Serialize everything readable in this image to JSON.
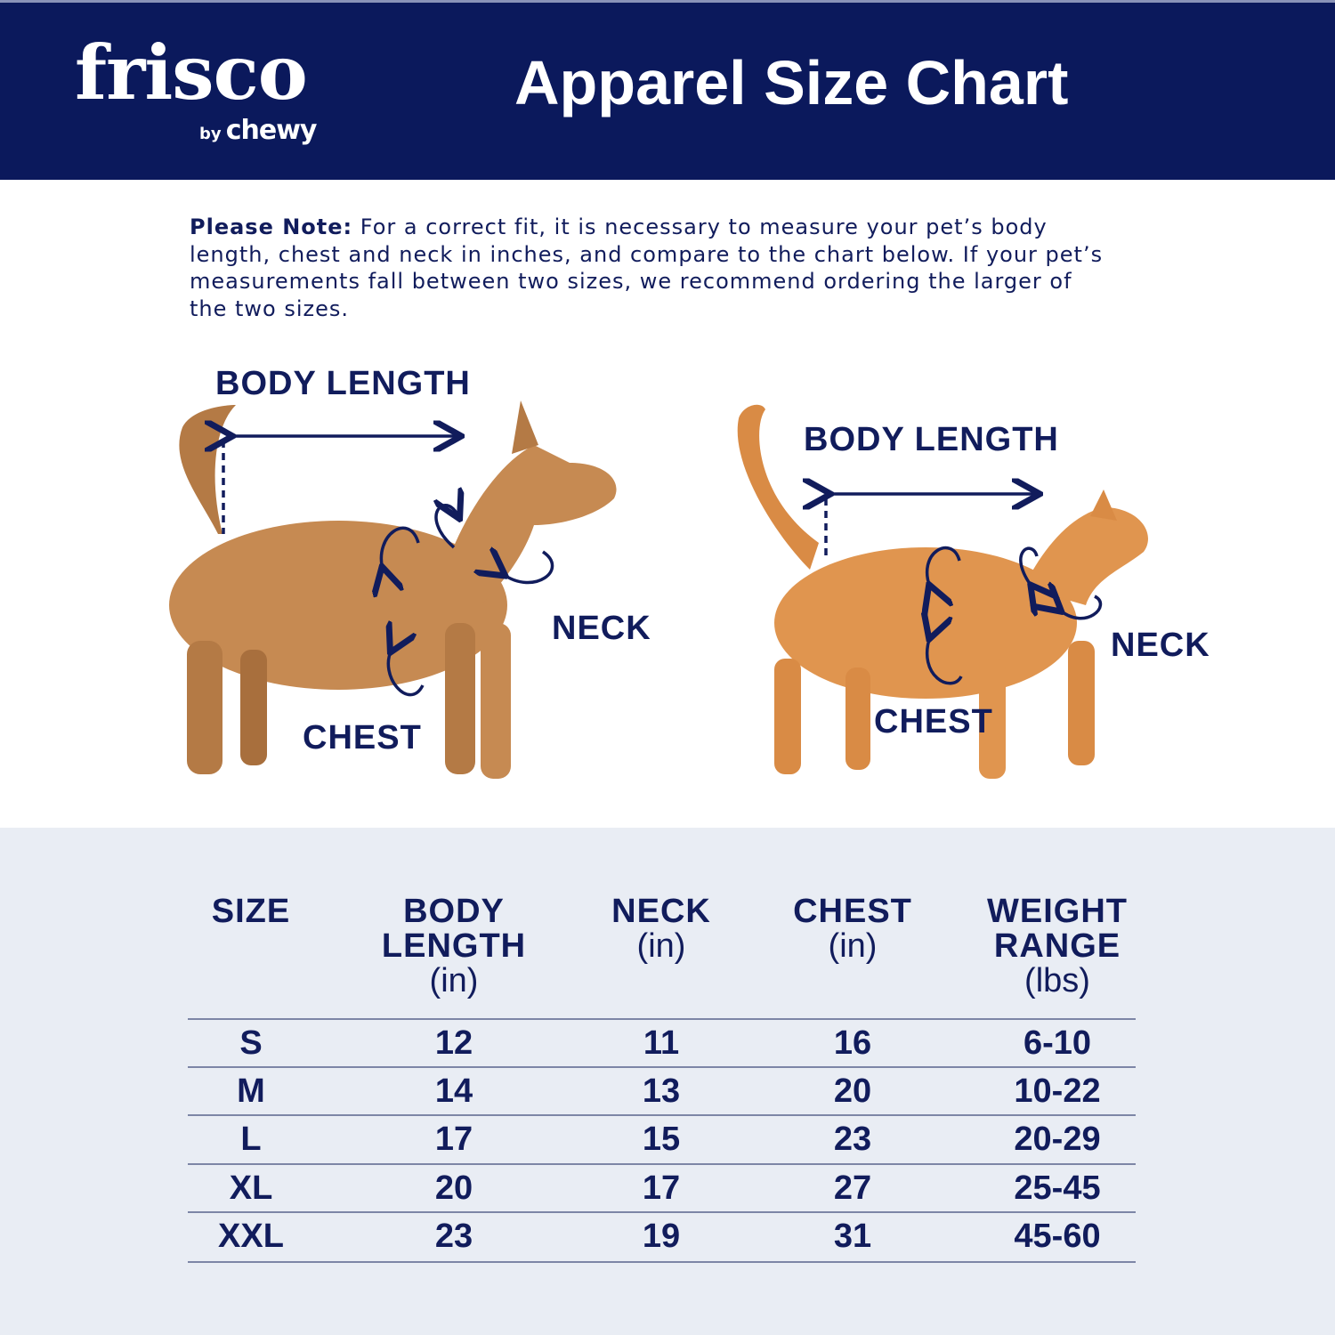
{
  "header": {
    "logo": {
      "brand": "frisco",
      "by": "by",
      "parent": "chewy"
    },
    "title": "Apparel Size Chart"
  },
  "note": {
    "label": "Please Note:",
    "text": " For a correct fit, it is necessary to measure your pet’s body length, chest and neck in inches, and compare to the chart below. If your pet’s measurements fall between two sizes, we recommend ordering the larger of the two sizes."
  },
  "diagram": {
    "dog": {
      "body_length": "BODY LENGTH",
      "neck": "NECK",
      "chest": "CHEST"
    },
    "cat": {
      "body_length": "BODY LENGTH",
      "neck": "NECK",
      "chest": "CHEST"
    }
  },
  "colors": {
    "navy": "#0b195c",
    "table_bg": "#e9edf4",
    "dog": "#c68a52",
    "cat": "#e0954f"
  },
  "table": {
    "headers": [
      {
        "title": "SIZE",
        "unit": ""
      },
      {
        "title": "BODY LENGTH",
        "title_lines": [
          "BODY",
          "LENGTH"
        ],
        "unit": "(in)"
      },
      {
        "title": "NECK",
        "unit": "(in)"
      },
      {
        "title": "CHEST",
        "unit": "(in)"
      },
      {
        "title": "WEIGHT RANGE",
        "title_lines": [
          "WEIGHT",
          "RANGE"
        ],
        "unit": "(lbs)"
      }
    ],
    "rows": [
      [
        "S",
        "12",
        "11",
        "16",
        "6-10"
      ],
      [
        "M",
        "14",
        "13",
        "20",
        "10-22"
      ],
      [
        "L",
        "17",
        "15",
        "23",
        "20-29"
      ],
      [
        "XL",
        "20",
        "17",
        "27",
        "25-45"
      ],
      [
        "XXL",
        "23",
        "19",
        "31",
        "45-60"
      ]
    ]
  }
}
